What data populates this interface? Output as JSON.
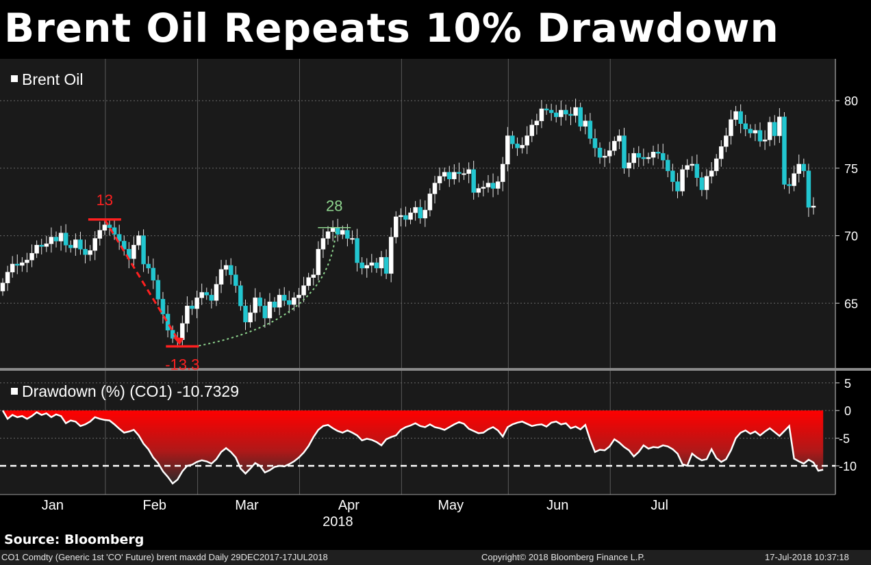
{
  "title": "Brent Oil Repeats 10% Drawdown",
  "source": "Source: Bloomberg",
  "footer": {
    "left": "CO1 Comdty (Generic 1st 'CO' Future) brent maxdd  Daily 29DEC2017-17JUL2018",
    "center": "Copyright© 2018 Bloomberg Finance L.P.",
    "right": "17-Jul-2018 10:37:18"
  },
  "colors": {
    "background": "#1a1a1a",
    "candle": "#22c6d0",
    "drawdown_fill_top": "#ff0000",
    "drawdown_line": "#ffffff",
    "annotation_red": "#ff2020",
    "annotation_green": "#8fd68f"
  },
  "chart_data": [
    {
      "type": "candlestick",
      "legend": "Brent Oil",
      "y_ticks": [
        65,
        70,
        75,
        80
      ],
      "ylim": [
        60.2,
        83.1
      ],
      "grid": true,
      "annotations": [
        {
          "label": "13",
          "value": 71.2
        },
        {
          "label": "-13.3",
          "value": 61.8
        },
        {
          "label": "28",
          "value": 70.6
        }
      ],
      "close": [
        66.5,
        67.3,
        67.9,
        67.8,
        68.0,
        68.2,
        68.7,
        69.3,
        69.2,
        69.4,
        69.9,
        69.6,
        70.2,
        69.3,
        69.1,
        69.7,
        69.0,
        68.6,
        68.9,
        69.8,
        70.4,
        70.8,
        70.6,
        70.1,
        69.6,
        69.0,
        68.3,
        69.3,
        70.0,
        67.9,
        67.6,
        66.7,
        65.3,
        64.2,
        63.0,
        62.4,
        62.3,
        63.5,
        64.8,
        64.6,
        65.4,
        65.8,
        65.6,
        65.2,
        66.4,
        67.5,
        67.8,
        67.1,
        66.3,
        64.8,
        63.6,
        64.3,
        65.4,
        64.8,
        63.9,
        65.1,
        64.7,
        65.6,
        65.2,
        64.9,
        65.4,
        65.6,
        66.3,
        66.9,
        67.1,
        69.0,
        69.8,
        70.3,
        70.6,
        70.1,
        70.4,
        69.8,
        69.8,
        68.0,
        67.6,
        67.8,
        68.0,
        67.6,
        68.4,
        67.2,
        69.9,
        71.4,
        71.5,
        71.2,
        71.7,
        72.1,
        71.3,
        71.9,
        73.1,
        73.9,
        74.4,
        74.7,
        74.2,
        74.7,
        74.6,
        74.6,
        74.9,
        73.2,
        73.5,
        73.6,
        73.9,
        73.5,
        74.0,
        75.3,
        77.4,
        76.8,
        76.5,
        76.7,
        77.4,
        78.2,
        78.5,
        79.4,
        79.3,
        79.1,
        78.8,
        79.3,
        79.0,
        78.9,
        79.5,
        78.1,
        78.5,
        77.2,
        76.5,
        75.8,
        75.9,
        76.3,
        77.0,
        77.4,
        75.0,
        75.4,
        76.1,
        75.8,
        75.7,
        75.8,
        76.2,
        76.1,
        75.6,
        74.8,
        74.0,
        73.3,
        74.9,
        75.2,
        75.3,
        74.3,
        73.4,
        74.4,
        74.8,
        75.7,
        76.6,
        77.4,
        78.6,
        79.2,
        78.3,
        77.9,
        77.6,
        77.8,
        77.0,
        77.1,
        78.4,
        77.4,
        78.8,
        73.8,
        73.7,
        74.6,
        75.3,
        74.8,
        72.1,
        72.2
      ],
      "x_labels": [
        {
          "label": "Jan",
          "index": 10
        },
        {
          "label": "Feb",
          "index": 31
        },
        {
          "label": "Mar",
          "index": 50
        },
        {
          "label": "Apr",
          "index": 71
        },
        {
          "label": "May",
          "index": 92
        },
        {
          "label": "Jun",
          "index": 114
        },
        {
          "label": "Jul",
          "index": 135
        }
      ],
      "year_label": "2018"
    },
    {
      "type": "area",
      "legend": "Drawdown (%) (CO1) -10.7329",
      "y_ticks": [
        5,
        0,
        -5,
        -10
      ],
      "ylim": [
        -15.2,
        7.2
      ],
      "reference_line": -10,
      "values": [
        0,
        -1.5,
        -0.8,
        -1.2,
        -1.0,
        -1.5,
        -1.0,
        -0.3,
        -0.8,
        -0.5,
        -1.2,
        -0.7,
        -1.0,
        -2.3,
        -1.8,
        -2.0,
        -2.8,
        -2.5,
        -2.0,
        -1.2,
        -1.5,
        -1.7,
        -1.8,
        -2.5,
        -3.3,
        -4.0,
        -3.8,
        -3.5,
        -4.5,
        -6.0,
        -7.0,
        -8.5,
        -9.5,
        -11.0,
        -12.0,
        -13.2,
        -12.5,
        -11.0,
        -10.0,
        -9.8,
        -9.3,
        -9.0,
        -9.2,
        -9.6,
        -8.8,
        -7.5,
        -6.8,
        -7.5,
        -8.5,
        -10.5,
        -11.4,
        -10.5,
        -9.5,
        -10.0,
        -11.2,
        -10.8,
        -10.2,
        -10.0,
        -10.1,
        -9.7,
        -9.2,
        -8.5,
        -7.6,
        -6.4,
        -4.8,
        -3.5,
        -2.8,
        -2.6,
        -3.2,
        -3.7,
        -4.0,
        -3.6,
        -4.0,
        -4.5,
        -5.4,
        -5.1,
        -5.3,
        -5.7,
        -6.3,
        -5.2,
        -4.8,
        -4.5,
        -3.5,
        -3.0,
        -2.7,
        -2.3,
        -2.8,
        -3.0,
        -2.5,
        -3.0,
        -3.2,
        -3.5,
        -3.0,
        -2.5,
        -2.1,
        -2.4,
        -3.3,
        -3.7,
        -4.1,
        -4.0,
        -3.4,
        -3.0,
        -3.6,
        -4.7,
        -3.0,
        -2.5,
        -2.2,
        -2.0,
        -2.4,
        -2.8,
        -2.6,
        -2.5,
        -2.9,
        -2.2,
        -2.0,
        -2.5,
        -2.3,
        -3.2,
        -2.9,
        -3.4,
        -2.6,
        -5.3,
        -7.5,
        -7.1,
        -7.2,
        -6.5,
        -5.2,
        -5.8,
        -6.6,
        -7.2,
        -8.3,
        -7.5,
        -6.3,
        -6.9,
        -6.6,
        -6.7,
        -6.3,
        -6.5,
        -7.0,
        -7.8,
        -9.7,
        -10.0,
        -7.8,
        -8.5,
        -9.0,
        -8.8,
        -7.0,
        -8.6,
        -9.3,
        -8.8,
        -7.2,
        -5.0,
        -4.0,
        -3.6,
        -4.2,
        -3.8,
        -4.5,
        -3.8,
        -3.2,
        -3.9,
        -4.6,
        -3.7,
        -2.8,
        -8.7,
        -9.2,
        -9.6,
        -8.9,
        -9.4,
        -10.9,
        -10.7
      ],
      "x_labels": [
        {
          "label": "Jan",
          "index": 10
        },
        {
          "label": "Feb",
          "index": 31
        },
        {
          "label": "Mar",
          "index": 50
        },
        {
          "label": "Apr",
          "index": 71
        },
        {
          "label": "May",
          "index": 92
        },
        {
          "label": "Jun",
          "index": 114
        },
        {
          "label": "Jul",
          "index": 135
        }
      ],
      "year_label": "2018"
    }
  ]
}
